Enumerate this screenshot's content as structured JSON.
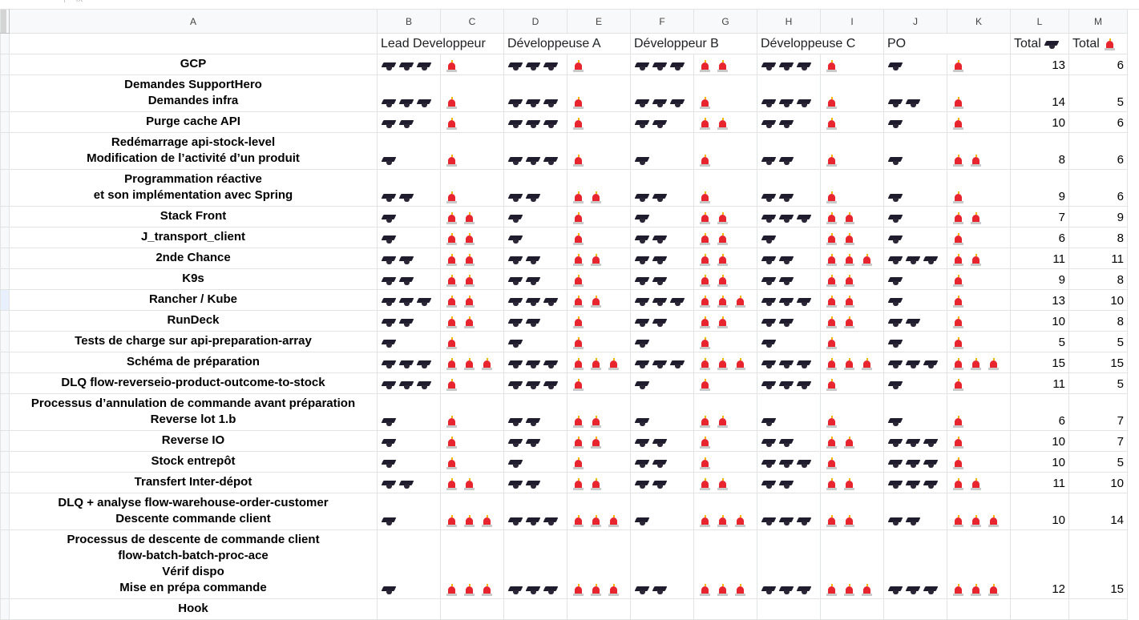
{
  "column_headers": [
    "A",
    "B",
    "C",
    "D",
    "E",
    "F",
    "G",
    "H",
    "I",
    "J",
    "K",
    "L",
    "M"
  ],
  "group_headers": [
    "Lead Developpeur",
    "Développeuse A",
    "Développeur B",
    "Développeuse C",
    "PO"
  ],
  "total_labels": [
    "Total",
    "Total"
  ],
  "total_icons": [
    "graduation-cap",
    "police-light"
  ],
  "selected_row_index": 9,
  "rows": [
    {
      "task": [
        "GCP"
      ],
      "counts": [
        3,
        1,
        3,
        1,
        3,
        2,
        3,
        1,
        1,
        1
      ],
      "total_skill": "13",
      "total_alarm": "6"
    },
    {
      "task": [
        "Demandes SupportHero",
        "Demandes infra"
      ],
      "counts": [
        3,
        1,
        3,
        1,
        3,
        1,
        3,
        1,
        2,
        1
      ],
      "total_skill": "14",
      "total_alarm": "5"
    },
    {
      "task": [
        "Purge cache API"
      ],
      "counts": [
        2,
        1,
        3,
        1,
        2,
        2,
        2,
        1,
        1,
        1
      ],
      "total_skill": "10",
      "total_alarm": "6"
    },
    {
      "task": [
        "Redémarrage api-stock-level",
        "Modification de l’activité d’un produit"
      ],
      "counts": [
        1,
        1,
        3,
        1,
        1,
        1,
        2,
        1,
        1,
        2
      ],
      "total_skill": "8",
      "total_alarm": "6"
    },
    {
      "task": [
        "Programmation réactive",
        "et son implémentation avec Spring"
      ],
      "counts": [
        2,
        1,
        2,
        2,
        2,
        1,
        2,
        1,
        1,
        1
      ],
      "total_skill": "9",
      "total_alarm": "6"
    },
    {
      "task": [
        "Stack Front"
      ],
      "counts": [
        1,
        2,
        1,
        1,
        1,
        2,
        3,
        2,
        1,
        2
      ],
      "total_skill": "7",
      "total_alarm": "9"
    },
    {
      "task": [
        "J_transport_client"
      ],
      "counts": [
        1,
        2,
        1,
        1,
        2,
        2,
        1,
        2,
        1,
        1
      ],
      "total_skill": "6",
      "total_alarm": "8"
    },
    {
      "task": [
        "2nde Chance"
      ],
      "counts": [
        2,
        2,
        2,
        2,
        2,
        2,
        2,
        3,
        3,
        2
      ],
      "total_skill": "11",
      "total_alarm": "11"
    },
    {
      "task": [
        "K9s"
      ],
      "counts": [
        2,
        2,
        2,
        1,
        2,
        2,
        2,
        2,
        1,
        1
      ],
      "total_skill": "9",
      "total_alarm": "8"
    },
    {
      "task": [
        "Rancher / Kube"
      ],
      "counts": [
        3,
        2,
        3,
        2,
        3,
        3,
        3,
        2,
        1,
        1
      ],
      "total_skill": "13",
      "total_alarm": "10"
    },
    {
      "task": [
        "RunDeck"
      ],
      "counts": [
        2,
        2,
        2,
        1,
        2,
        2,
        2,
        2,
        2,
        1
      ],
      "total_skill": "10",
      "total_alarm": "8"
    },
    {
      "task": [
        "Tests de charge sur api-preparation-array"
      ],
      "counts": [
        1,
        1,
        1,
        1,
        1,
        1,
        1,
        1,
        1,
        1
      ],
      "total_skill": "5",
      "total_alarm": "5"
    },
    {
      "task": [
        "Schéma de préparation"
      ],
      "counts": [
        3,
        3,
        3,
        3,
        3,
        3,
        3,
        3,
        3,
        3
      ],
      "total_skill": "15",
      "total_alarm": "15"
    },
    {
      "task": [
        "DLQ flow-reverseio-product-outcome-to-stock"
      ],
      "counts": [
        3,
        1,
        3,
        1,
        1,
        1,
        3,
        1,
        1,
        1
      ],
      "total_skill": "11",
      "total_alarm": "5"
    },
    {
      "task": [
        "Processus d’annulation de commande avant préparation",
        "Reverse lot 1.b"
      ],
      "counts": [
        1,
        1,
        2,
        2,
        1,
        2,
        1,
        1,
        1,
        1
      ],
      "total_skill": "6",
      "total_alarm": "7"
    },
    {
      "task": [
        "Reverse IO"
      ],
      "counts": [
        1,
        1,
        2,
        2,
        2,
        1,
        2,
        2,
        3,
        1
      ],
      "total_skill": "10",
      "total_alarm": "7"
    },
    {
      "task": [
        "Stock entrepôt"
      ],
      "counts": [
        1,
        1,
        1,
        1,
        2,
        1,
        3,
        1,
        3,
        1
      ],
      "total_skill": "10",
      "total_alarm": "5"
    },
    {
      "task": [
        "Transfert Inter-dépot"
      ],
      "counts": [
        2,
        2,
        2,
        2,
        2,
        2,
        2,
        2,
        3,
        2
      ],
      "total_skill": "11",
      "total_alarm": "10"
    },
    {
      "task": [
        "DLQ + analyse flow-warehouse-order-customer",
        "Descente commande client"
      ],
      "counts": [
        1,
        3,
        3,
        3,
        1,
        3,
        3,
        2,
        2,
        3
      ],
      "total_skill": "10",
      "total_alarm": "14"
    },
    {
      "task": [
        "Processus de descente de commande client",
        "flow-batch-batch-proc-ace",
        "Vérif dispo",
        "Mise en prépa commande"
      ],
      "counts": [
        1,
        3,
        3,
        3,
        2,
        3,
        3,
        3,
        3,
        3
      ],
      "total_skill": "12",
      "total_alarm": "15"
    },
    {
      "task": [
        "Hook"
      ],
      "counts": [
        0,
        0,
        0,
        0,
        0,
        0,
        0,
        0,
        0,
        0
      ],
      "total_skill": "",
      "total_alarm": ""
    }
  ]
}
